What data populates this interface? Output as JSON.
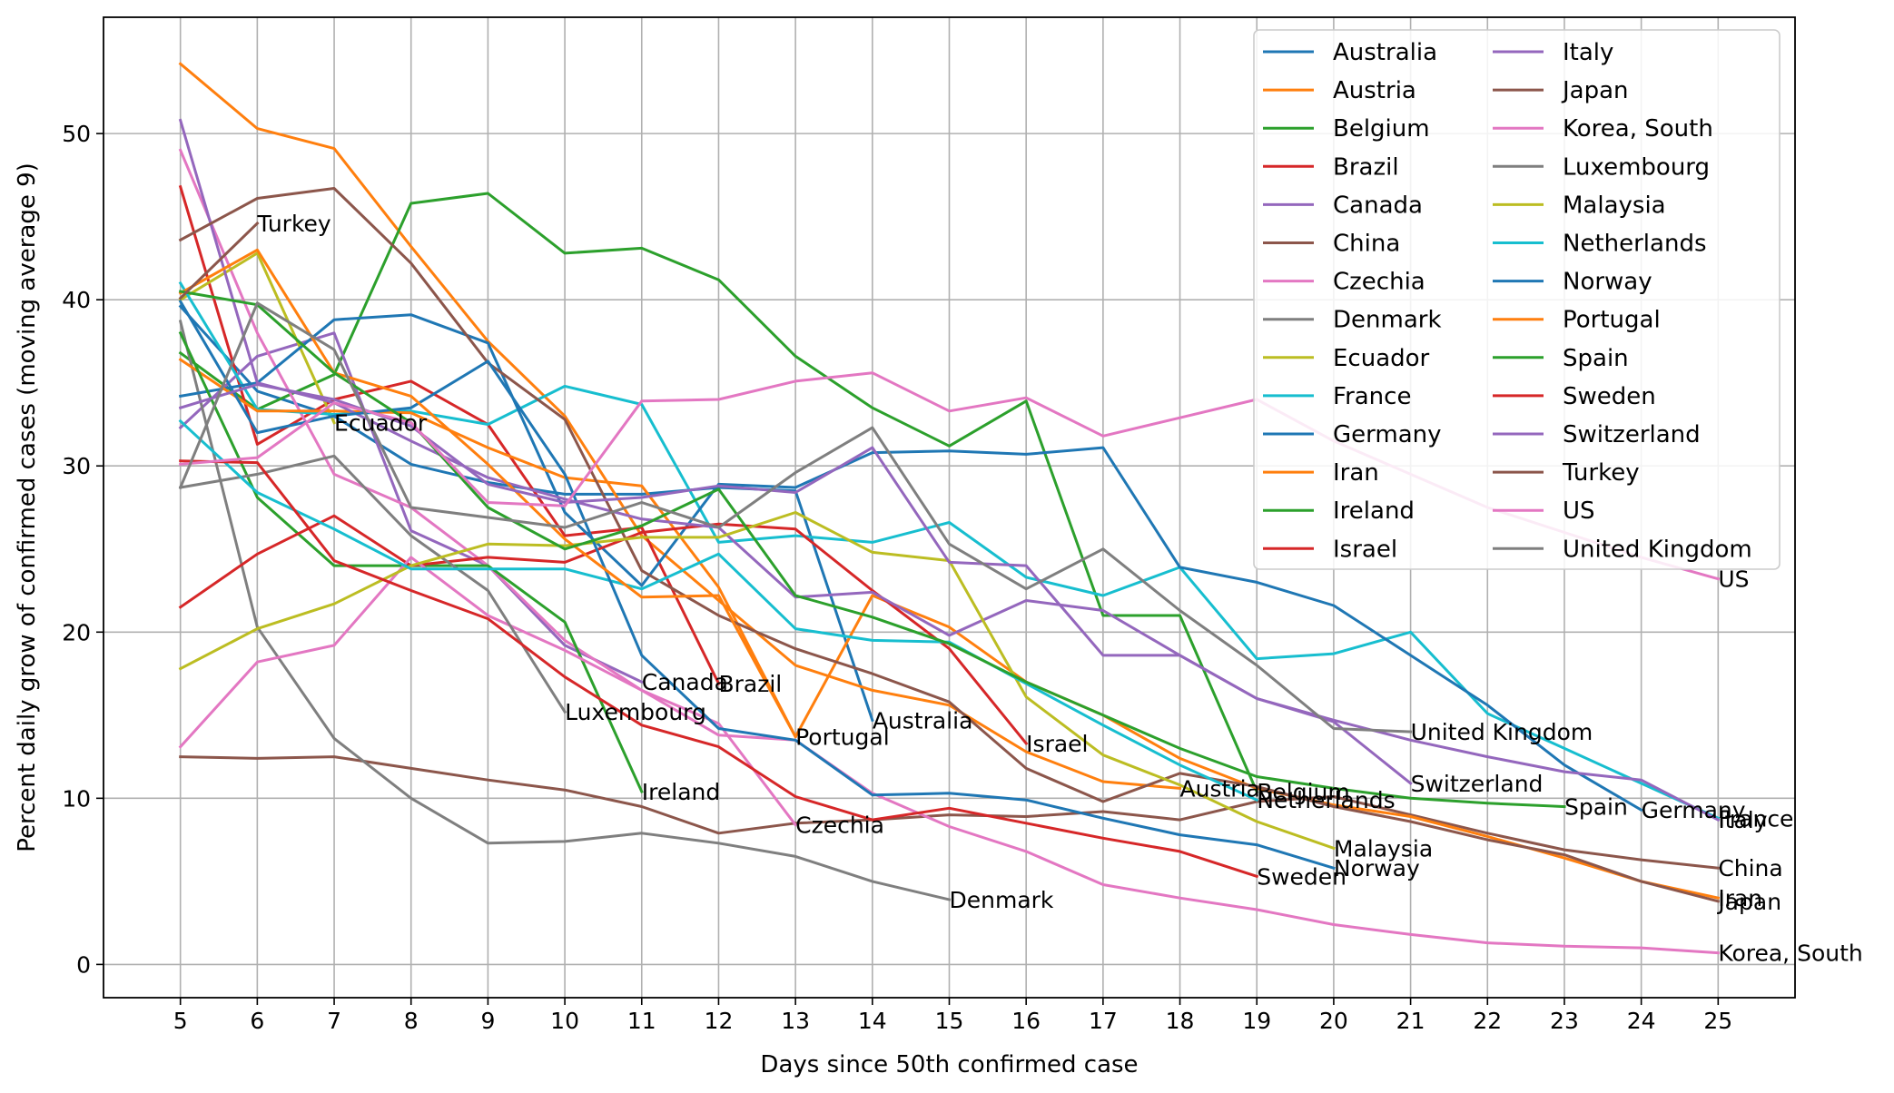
{
  "chart_data": {
    "type": "line",
    "xlabel": "Days since 50th confirmed case",
    "ylabel": "Percent daily grow of confirmed cases (moving average 9)",
    "xlim": [
      4,
      26
    ],
    "ylim": [
      -2,
      57
    ],
    "x_ticks": [
      5,
      6,
      7,
      8,
      9,
      10,
      11,
      12,
      13,
      14,
      15,
      16,
      17,
      18,
      19,
      20,
      21,
      22,
      23,
      24,
      25
    ],
    "y_ticks": [
      0,
      10,
      20,
      30,
      40,
      50
    ],
    "grid": true,
    "legend": {
      "placement": "top-right",
      "columns": 2
    },
    "series": [
      {
        "name": "Australia",
        "color": "#1f77b4",
        "end_label": "Australia",
        "x": [
          5,
          6,
          7,
          8,
          9,
          10,
          11,
          12,
          13,
          14
        ],
        "values": [
          39.6,
          34.5,
          33.0,
          30.1,
          29.0,
          28.3,
          28.3,
          28.7,
          28.5,
          14.7
        ]
      },
      {
        "name": "Austria",
        "color": "#ff7f0e",
        "end_label": "Austria",
        "x": [
          5,
          6,
          7,
          8,
          9,
          10,
          11,
          12,
          13,
          14,
          15,
          16,
          17,
          18
        ],
        "values": [
          54.2,
          50.3,
          49.1,
          43.2,
          37.5,
          33.0,
          25.8,
          21.9,
          18.0,
          16.5,
          15.6,
          12.8,
          11.0,
          10.6
        ]
      },
      {
        "name": "Belgium",
        "color": "#2ca02c",
        "end_label": "Belgium",
        "x": [
          5,
          6,
          7,
          8,
          9,
          10,
          11,
          12,
          13,
          14,
          15,
          16,
          17,
          18,
          19
        ],
        "values": [
          36.8,
          33.4,
          35.5,
          45.8,
          46.4,
          42.8,
          43.1,
          41.2,
          36.6,
          33.5,
          31.2,
          33.9,
          21.0,
          21.0,
          10.4
        ]
      },
      {
        "name": "Brazil",
        "color": "#d62728",
        "end_label": "Brazil",
        "x": [
          5,
          6,
          7,
          8,
          9,
          10,
          11,
          12
        ],
        "values": [
          46.8,
          31.3,
          34.0,
          35.1,
          32.5,
          25.8,
          26.3,
          16.9
        ]
      },
      {
        "name": "Canada",
        "color": "#9467bd",
        "end_label": "Canada",
        "x": [
          5,
          6,
          7,
          8,
          9,
          10,
          11
        ],
        "values": [
          32.3,
          36.6,
          38.0,
          26.1,
          24.0,
          19.2,
          17.0
        ]
      },
      {
        "name": "China",
        "color": "#8c564b",
        "end_label": "China",
        "x": [
          5,
          6,
          7,
          8,
          9,
          10,
          11,
          12,
          13,
          14,
          15,
          16,
          17,
          18,
          19,
          20,
          21,
          22,
          23,
          24,
          25
        ],
        "values": [
          12.5,
          12.4,
          12.5,
          11.8,
          11.1,
          10.5,
          9.5,
          7.9,
          8.5,
          8.7,
          9.0,
          8.9,
          9.2,
          8.7,
          9.8,
          10.1,
          9.0,
          7.9,
          6.9,
          6.3,
          5.8
        ]
      },
      {
        "name": "Czechia",
        "color": "#e377c2",
        "end_label": "Czechia",
        "x": [
          5,
          6,
          7,
          8,
          9,
          10,
          11,
          12,
          13
        ],
        "values": [
          49.0,
          38.0,
          29.5,
          27.5,
          24.0,
          19.5,
          16.5,
          14.5,
          8.4
        ]
      },
      {
        "name": "Denmark",
        "color": "#7f7f7f",
        "end_label": "Denmark",
        "x": [
          5,
          6,
          7,
          8,
          9,
          10,
          11,
          12,
          13,
          14,
          15
        ],
        "values": [
          38.7,
          20.3,
          13.6,
          10.0,
          7.3,
          7.4,
          7.9,
          7.3,
          6.5,
          5.0,
          3.9
        ]
      },
      {
        "name": "Ecuador",
        "color": "#bcbd22",
        "end_label": "Ecuador",
        "x": [
          5,
          6,
          7
        ],
        "values": [
          40.0,
          42.8,
          32.6
        ]
      },
      {
        "name": "France",
        "color": "#17becf",
        "end_label": "France",
        "x": [
          5,
          6,
          7,
          8,
          9,
          10,
          11,
          12,
          13,
          14,
          15,
          16,
          17,
          18,
          19,
          20,
          21,
          22,
          23,
          24,
          25
        ],
        "values": [
          41.0,
          33.4,
          33.1,
          33.3,
          32.5,
          34.8,
          33.7,
          25.4,
          25.8,
          25.4,
          26.6,
          23.3,
          22.2,
          23.9,
          18.4,
          18.7,
          20.0,
          15.1,
          13.0,
          10.9,
          8.8
        ]
      },
      {
        "name": "Germany",
        "color": "#1f77b4",
        "end_label": "Germany",
        "x": [
          5,
          6,
          7,
          8,
          9,
          10,
          11,
          12,
          13,
          14,
          15,
          16,
          17,
          18,
          19,
          20,
          21,
          22,
          23,
          24
        ],
        "values": [
          34.2,
          35.0,
          38.8,
          39.1,
          37.4,
          27.2,
          22.8,
          28.9,
          28.7,
          30.8,
          30.9,
          30.7,
          31.1,
          23.9,
          23.0,
          21.6,
          18.6,
          15.6,
          12.0,
          9.3
        ]
      },
      {
        "name": "Iran",
        "color": "#ff7f0e",
        "end_label": "Iran",
        "x": [
          5,
          6,
          7,
          8,
          9,
          10,
          11,
          12,
          13,
          14,
          15,
          16,
          17,
          18,
          19,
          20,
          21,
          22,
          23,
          24,
          25
        ],
        "values": [
          36.4,
          33.3,
          33.3,
          33.2,
          31.1,
          29.3,
          28.8,
          22.7,
          13.7,
          22.2,
          20.3,
          17.0,
          15.0,
          12.4,
          10.6,
          9.6,
          8.9,
          7.7,
          6.4,
          5.0,
          4.0
        ]
      },
      {
        "name": "Ireland",
        "color": "#2ca02c",
        "end_label": "Ireland",
        "x": [
          5,
          6,
          7,
          8,
          9,
          10,
          11
        ],
        "values": [
          38.0,
          28.1,
          24.0,
          24.0,
          24.0,
          20.6,
          10.4
        ]
      },
      {
        "name": "Israel",
        "color": "#d62728",
        "end_label": "Israel",
        "x": [
          5,
          6,
          7,
          8,
          9,
          10,
          11,
          12,
          13,
          14,
          15,
          16
        ],
        "values": [
          21.5,
          24.7,
          27.0,
          24.0,
          24.5,
          24.2,
          26.0,
          26.5,
          26.2,
          22.5,
          19.0,
          13.3
        ]
      },
      {
        "name": "Italy",
        "color": "#9467bd",
        "end_label": "Italy",
        "x": [
          5,
          6,
          7,
          8,
          9,
          10,
          11,
          12,
          13,
          14,
          15,
          16,
          17,
          18,
          19,
          20,
          21,
          22,
          23,
          24,
          25
        ],
        "values": [
          50.8,
          35.0,
          33.8,
          31.5,
          29.3,
          28.0,
          26.8,
          26.3,
          22.1,
          22.4,
          19.8,
          21.9,
          21.3,
          18.6,
          16.0,
          14.7,
          13.5,
          12.5,
          11.6,
          11.1,
          8.7
        ]
      },
      {
        "name": "Japan",
        "color": "#8c564b",
        "end_label": "Japan",
        "x": [
          5,
          6,
          7,
          8,
          9,
          10,
          11,
          12,
          13,
          14,
          15,
          16,
          17,
          18,
          19,
          20,
          21,
          22,
          23,
          24,
          25
        ],
        "values": [
          43.6,
          46.1,
          46.7,
          42.2,
          36.2,
          32.8,
          23.7,
          21.0,
          19.0,
          17.5,
          15.8,
          11.8,
          9.8,
          11.5,
          10.7,
          9.5,
          8.6,
          7.5,
          6.6,
          5.0,
          3.8
        ]
      },
      {
        "name": "Korea, South",
        "color": "#e377c2",
        "end_label": "Korea, South",
        "x": [
          5,
          6,
          7,
          8,
          9,
          10,
          11,
          12,
          13,
          14,
          15,
          16,
          17,
          18,
          19,
          20,
          21,
          22,
          23,
          24,
          25
        ],
        "values": [
          13.1,
          18.2,
          19.2,
          24.5,
          21.0,
          18.9,
          16.5,
          13.8,
          13.5,
          10.3,
          8.3,
          6.8,
          4.8,
          4.0,
          3.3,
          2.4,
          1.8,
          1.3,
          1.1,
          1.0,
          0.7
        ]
      },
      {
        "name": "Luxembourg",
        "color": "#7f7f7f",
        "end_label": "Luxembourg",
        "x": [
          5,
          6,
          7,
          8,
          9,
          10
        ],
        "values": [
          28.7,
          29.5,
          30.6,
          25.8,
          22.5,
          15.2
        ]
      },
      {
        "name": "Malaysia",
        "color": "#bcbd22",
        "end_label": "Malaysia",
        "x": [
          5,
          6,
          7,
          8,
          9,
          10,
          11,
          12,
          13,
          14,
          15,
          16,
          17,
          18,
          19,
          20
        ],
        "values": [
          17.8,
          20.2,
          21.7,
          24.0,
          25.3,
          25.2,
          25.7,
          25.7,
          27.2,
          24.8,
          24.3,
          16.1,
          12.6,
          10.8,
          8.6,
          7.0
        ]
      },
      {
        "name": "Netherlands",
        "color": "#17becf",
        "end_label": "Netherlands",
        "x": [
          5,
          6,
          7,
          8,
          9,
          10,
          11,
          12,
          13,
          14,
          15,
          16,
          17,
          18,
          19
        ],
        "values": [
          32.7,
          28.4,
          26.2,
          23.8,
          23.8,
          23.8,
          22.6,
          24.7,
          20.2,
          19.5,
          19.4,
          16.9,
          14.4,
          12.0,
          9.9
        ]
      },
      {
        "name": "Norway",
        "color": "#1f77b4",
        "end_label": "Norway",
        "x": [
          5,
          6,
          7,
          8,
          9,
          10,
          11,
          12,
          13,
          14,
          15,
          16,
          17,
          18,
          19,
          20
        ],
        "values": [
          39.9,
          32.0,
          33.0,
          33.5,
          36.3,
          29.5,
          18.6,
          14.2,
          13.5,
          10.2,
          10.3,
          9.9,
          8.8,
          7.8,
          7.2,
          5.8
        ]
      },
      {
        "name": "Portugal",
        "color": "#ff7f0e",
        "end_label": "Portugal",
        "x": [
          5,
          6,
          7,
          8,
          9,
          10,
          11,
          12,
          13
        ],
        "values": [
          40.4,
          43.0,
          35.6,
          34.2,
          30.1,
          25.6,
          22.1,
          22.2,
          13.7
        ]
      },
      {
        "name": "Spain",
        "color": "#2ca02c",
        "end_label": "Spain",
        "x": [
          5,
          6,
          7,
          8,
          9,
          10,
          11,
          12,
          13,
          14,
          15,
          16,
          17,
          18,
          19,
          20,
          21,
          22,
          23
        ],
        "values": [
          40.5,
          39.7,
          35.6,
          32.6,
          27.5,
          25.0,
          26.4,
          28.6,
          22.2,
          20.9,
          19.3,
          17.0,
          15.0,
          13.0,
          11.3,
          10.6,
          10.0,
          9.7,
          9.5
        ]
      },
      {
        "name": "Sweden",
        "color": "#d62728",
        "end_label": "Sweden",
        "x": [
          5,
          6,
          7,
          8,
          9,
          10,
          11,
          12,
          13,
          14,
          15,
          16,
          17,
          18,
          19
        ],
        "values": [
          30.3,
          30.2,
          24.3,
          22.5,
          20.8,
          17.3,
          14.4,
          13.1,
          10.1,
          8.7,
          9.4,
          8.5,
          7.6,
          6.8,
          5.3
        ]
      },
      {
        "name": "Switzerland",
        "color": "#9467bd",
        "end_label": "Switzerland",
        "x": [
          5,
          6,
          7,
          8,
          9,
          10,
          11,
          12,
          13,
          14,
          15,
          16,
          17,
          18,
          19,
          20,
          21
        ],
        "values": [
          33.5,
          34.9,
          34.0,
          32.4,
          28.9,
          27.8,
          28.1,
          28.8,
          28.4,
          31.1,
          24.2,
          24.0,
          18.6,
          18.6,
          16.0,
          14.6,
          10.9
        ]
      },
      {
        "name": "Turkey",
        "color": "#8c564b",
        "end_label": "Turkey",
        "x": [
          5,
          6
        ],
        "values": [
          40.1,
          44.6
        ]
      },
      {
        "name": "US",
        "color": "#e377c2",
        "end_label": "US",
        "x": [
          5,
          6,
          7,
          8,
          9,
          10,
          11,
          12,
          13,
          14,
          15,
          16,
          17,
          18,
          19,
          20,
          21,
          22,
          23,
          24,
          25
        ],
        "values": [
          30.1,
          30.5,
          33.8,
          32.6,
          27.8,
          27.6,
          33.9,
          34.0,
          35.1,
          35.6,
          33.3,
          34.1,
          31.8,
          32.9,
          34.0,
          31.5,
          29.5,
          27.5,
          26.0,
          24.5,
          23.2
        ]
      },
      {
        "name": "United Kingdom",
        "color": "#7f7f7f",
        "end_label": "United Kingdom",
        "x": [
          5,
          6,
          7,
          8,
          9,
          10,
          11,
          12,
          13,
          14,
          15,
          16,
          17,
          18,
          19,
          20,
          21
        ],
        "values": [
          28.7,
          39.8,
          37.0,
          27.5,
          26.9,
          26.3,
          27.8,
          26.3,
          29.6,
          32.3,
          25.3,
          22.6,
          25.0,
          21.3,
          18.0,
          14.2,
          14.0
        ]
      }
    ]
  }
}
